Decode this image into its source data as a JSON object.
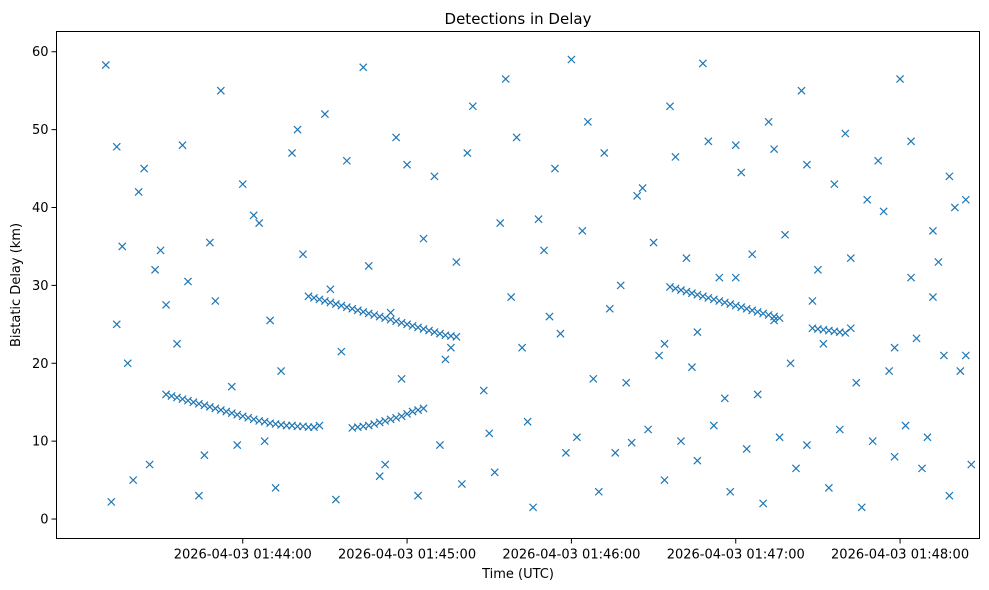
{
  "chart_data": {
    "type": "scatter",
    "title": "Detections in Delay",
    "xlabel": "Time (UTC)",
    "ylabel": "Bistatic Delay (km)",
    "x_ticks": [
      "2026-04-03 01:44:00",
      "2026-04-03 01:45:00",
      "2026-04-03 01:46:00",
      "2026-04-03 01:47:00",
      "2026-04-03 01:48:00"
    ],
    "xlim": [
      "2026-04-03 01:42:52",
      "2026-04-03 01:48:29"
    ],
    "y_ticks": [
      0,
      10,
      20,
      30,
      40,
      50,
      60
    ],
    "ylim": [
      -2.5,
      62.6
    ],
    "marker": "x",
    "marker_color": "#1f77b4",
    "grid": false,
    "note": "Cluttered scatter of several hundred detections; listed below are the clearly visible tracks (in order of time) plus a representative sample of scattered clutter points.",
    "series": [
      {
        "name": "",
        "x": [
          "2026-04-03 01:43:32",
          "2026-04-03 01:43:34",
          "2026-04-03 01:43:36",
          "2026-04-03 01:43:38",
          "2026-04-03 01:43:40",
          "2026-04-03 01:43:42",
          "2026-04-03 01:43:44",
          "2026-04-03 01:43:46",
          "2026-04-03 01:43:48",
          "2026-04-03 01:43:50",
          "2026-04-03 01:43:52",
          "2026-04-03 01:43:54",
          "2026-04-03 01:43:56",
          "2026-04-03 01:43:58",
          "2026-04-03 01:44:00",
          "2026-04-03 01:44:02",
          "2026-04-03 01:44:04",
          "2026-04-03 01:44:06",
          "2026-04-03 01:44:08",
          "2026-04-03 01:44:10",
          "2026-04-03 01:44:12",
          "2026-04-03 01:44:14",
          "2026-04-03 01:44:16",
          "2026-04-03 01:44:18",
          "2026-04-03 01:44:20",
          "2026-04-03 01:44:22",
          "2026-04-03 01:44:24",
          "2026-04-03 01:44:26",
          "2026-04-03 01:44:40",
          "2026-04-03 01:44:42",
          "2026-04-03 01:44:44",
          "2026-04-03 01:44:46",
          "2026-04-03 01:44:48",
          "2026-04-03 01:44:50",
          "2026-04-03 01:44:52",
          "2026-04-03 01:44:54",
          "2026-04-03 01:44:56",
          "2026-04-03 01:44:58",
          "2026-04-03 01:45:00",
          "2026-04-03 01:45:02",
          "2026-04-03 01:45:04",
          "2026-04-03 01:45:06",
          "2026-04-03 01:44:24",
          "2026-04-03 01:44:26",
          "2026-04-03 01:44:28",
          "2026-04-03 01:44:30",
          "2026-04-03 01:44:32",
          "2026-04-03 01:44:34",
          "2026-04-03 01:44:36",
          "2026-04-03 01:44:38",
          "2026-04-03 01:44:40",
          "2026-04-03 01:44:42",
          "2026-04-03 01:44:44",
          "2026-04-03 01:44:46",
          "2026-04-03 01:44:48",
          "2026-04-03 01:44:50",
          "2026-04-03 01:44:52",
          "2026-04-03 01:44:54",
          "2026-04-03 01:44:56",
          "2026-04-03 01:44:58",
          "2026-04-03 01:45:00",
          "2026-04-03 01:45:02",
          "2026-04-03 01:45:04",
          "2026-04-03 01:45:06",
          "2026-04-03 01:45:08",
          "2026-04-03 01:45:10",
          "2026-04-03 01:45:12",
          "2026-04-03 01:45:14",
          "2026-04-03 01:45:16",
          "2026-04-03 01:45:18",
          "2026-04-03 01:46:36",
          "2026-04-03 01:46:38",
          "2026-04-03 01:46:40",
          "2026-04-03 01:46:42",
          "2026-04-03 01:46:44",
          "2026-04-03 01:46:46",
          "2026-04-03 01:46:48",
          "2026-04-03 01:46:50",
          "2026-04-03 01:46:52",
          "2026-04-03 01:46:54",
          "2026-04-03 01:46:56",
          "2026-04-03 01:46:58",
          "2026-04-03 01:47:00",
          "2026-04-03 01:47:02",
          "2026-04-03 01:47:04",
          "2026-04-03 01:47:06",
          "2026-04-03 01:47:08",
          "2026-04-03 01:47:10",
          "2026-04-03 01:47:12",
          "2026-04-03 01:47:14",
          "2026-04-03 01:47:16",
          "2026-04-03 01:47:28",
          "2026-04-03 01:47:30",
          "2026-04-03 01:47:32",
          "2026-04-03 01:47:34",
          "2026-04-03 01:47:36",
          "2026-04-03 01:47:38",
          "2026-04-03 01:47:40",
          "2026-04-03 01:43:10",
          "2026-04-03 01:43:14",
          "2026-04-03 01:43:22",
          "2026-04-03 01:43:30",
          "2026-04-03 01:43:40",
          "2026-04-03 01:43:52",
          "2026-04-03 01:44:06",
          "2026-04-03 01:44:18",
          "2026-04-03 01:44:30",
          "2026-04-03 01:44:44",
          "2026-04-03 01:44:56",
          "2026-04-03 01:45:10",
          "2026-04-03 01:45:24",
          "2026-04-03 01:45:36",
          "2026-04-03 01:45:48",
          "2026-04-03 01:46:00",
          "2026-04-03 01:46:12",
          "2026-04-03 01:46:24",
          "2026-04-03 01:46:36",
          "2026-04-03 01:46:48",
          "2026-04-03 01:47:00",
          "2026-04-03 01:47:12",
          "2026-04-03 01:47:24",
          "2026-04-03 01:47:36",
          "2026-04-03 01:47:48",
          "2026-04-03 01:48:00",
          "2026-04-03 01:48:12",
          "2026-04-03 01:48:20",
          "2026-04-03 01:43:12",
          "2026-04-03 01:43:26",
          "2026-04-03 01:43:44",
          "2026-04-03 01:43:58",
          "2026-04-03 01:44:12",
          "2026-04-03 01:44:34",
          "2026-04-03 01:44:50",
          "2026-04-03 01:45:04",
          "2026-04-03 01:45:20",
          "2026-04-03 01:45:32",
          "2026-04-03 01:45:46",
          "2026-04-03 01:45:58",
          "2026-04-03 01:46:10",
          "2026-04-03 01:46:22",
          "2026-04-03 01:46:34",
          "2026-04-03 01:46:46",
          "2026-04-03 01:46:58",
          "2026-04-03 01:47:10",
          "2026-04-03 01:47:22",
          "2026-04-03 01:47:34",
          "2026-04-03 01:47:46",
          "2026-04-03 01:47:58",
          "2026-04-03 01:48:08",
          "2026-04-03 01:48:18",
          "2026-04-03 01:43:18",
          "2026-04-03 01:43:36",
          "2026-04-03 01:43:56",
          "2026-04-03 01:44:14",
          "2026-04-03 01:44:36",
          "2026-04-03 01:44:58",
          "2026-04-03 01:45:14",
          "2026-04-03 01:45:28",
          "2026-04-03 01:45:42",
          "2026-04-03 01:45:56",
          "2026-04-03 01:46:08",
          "2026-04-03 01:46:20",
          "2026-04-03 01:46:32",
          "2026-04-03 01:46:44",
          "2026-04-03 01:46:56",
          "2026-04-03 01:47:08",
          "2026-04-03 01:47:20",
          "2026-04-03 01:47:32",
          "2026-04-03 01:47:44",
          "2026-04-03 01:47:56",
          "2026-04-03 01:48:06",
          "2026-04-03 01:48:16",
          "2026-04-03 01:48:22",
          "2026-04-03 01:43:16",
          "2026-04-03 01:43:28",
          "2026-04-03 01:43:48",
          "2026-04-03 01:44:04",
          "2026-04-03 01:44:22",
          "2026-04-03 01:44:46",
          "2026-04-03 01:45:06",
          "2026-04-03 01:45:18",
          "2026-04-03 01:45:34",
          "2026-04-03 01:45:50",
          "2026-04-03 01:46:04",
          "2026-04-03 01:46:18",
          "2026-04-03 01:46:30",
          "2026-04-03 01:46:42",
          "2026-04-03 01:46:54",
          "2026-04-03 01:47:06",
          "2026-04-03 01:47:18",
          "2026-04-03 01:47:30",
          "2026-04-03 01:47:42",
          "2026-04-03 01:47:54",
          "2026-04-03 01:48:04",
          "2026-04-03 01:48:14",
          "2026-04-03 01:48:24",
          "2026-04-03 01:43:20",
          "2026-04-03 01:43:46",
          "2026-04-03 01:44:08",
          "2026-04-03 01:44:28",
          "2026-04-03 01:44:52",
          "2026-04-03 01:45:12",
          "2026-04-03 01:45:30",
          "2026-04-03 01:45:44",
          "2026-04-03 01:46:02",
          "2026-04-03 01:46:16",
          "2026-04-03 01:46:28",
          "2026-04-03 01:46:40",
          "2026-04-03 01:46:52",
          "2026-04-03 01:47:04",
          "2026-04-03 01:47:16",
          "2026-04-03 01:47:26",
          "2026-04-03 01:47:38",
          "2026-04-03 01:47:50",
          "2026-04-03 01:48:02",
          "2026-04-03 01:48:10",
          "2026-04-03 01:48:26",
          "2026-04-03 01:43:24",
          "2026-04-03 01:43:38",
          "2026-04-03 01:44:00",
          "2026-04-03 01:44:20",
          "2026-04-03 01:44:38",
          "2026-04-03 01:45:00",
          "2026-04-03 01:45:22",
          "2026-04-03 01:45:40",
          "2026-04-03 01:45:54",
          "2026-04-03 01:46:06",
          "2026-04-03 01:46:26",
          "2026-04-03 01:46:38",
          "2026-04-03 01:46:50",
          "2026-04-03 01:47:02",
          "2026-04-03 01:47:14",
          "2026-04-03 01:47:26",
          "2026-04-03 01:47:40",
          "2026-04-03 01:47:52",
          "2026-04-03 01:48:04",
          "2026-04-03 01:48:18",
          "2026-04-03 01:43:14",
          "2026-04-03 01:43:32",
          "2026-04-03 01:43:50",
          "2026-04-03 01:44:10",
          "2026-04-03 01:44:32",
          "2026-04-03 01:44:54",
          "2026-04-03 01:45:16",
          "2026-04-03 01:45:38",
          "2026-04-03 01:45:52",
          "2026-04-03 01:46:14",
          "2026-04-03 01:46:34",
          "2026-04-03 01:46:46",
          "2026-04-03 01:47:00",
          "2026-04-03 01:47:14",
          "2026-04-03 01:47:28",
          "2026-04-03 01:47:42",
          "2026-04-03 01:47:58",
          "2026-04-03 01:48:12",
          "2026-04-03 01:48:24"
        ],
        "y": [
          16.0,
          15.8,
          15.6,
          15.4,
          15.2,
          15.0,
          14.8,
          14.6,
          14.4,
          14.2,
          14.0,
          13.8,
          13.6,
          13.4,
          13.2,
          13.0,
          12.8,
          12.6,
          12.5,
          12.3,
          12.2,
          12.1,
          12.0,
          12.0,
          11.9,
          11.9,
          11.8,
          11.8,
          11.7,
          11.8,
          11.9,
          12.0,
          12.2,
          12.4,
          12.6,
          12.8,
          13.0,
          13.2,
          13.5,
          13.8,
          14.0,
          14.2,
          28.6,
          28.4,
          28.2,
          28.0,
          27.8,
          27.6,
          27.4,
          27.2,
          27.0,
          26.8,
          26.6,
          26.4,
          26.2,
          26.0,
          25.8,
          25.6,
          25.4,
          25.2,
          25.0,
          24.8,
          24.6,
          24.4,
          24.2,
          24.0,
          23.8,
          23.6,
          23.5,
          23.4,
          29.8,
          29.6,
          29.4,
          29.2,
          29.0,
          28.8,
          28.6,
          28.4,
          28.2,
          28.0,
          27.8,
          27.6,
          27.4,
          27.2,
          27.0,
          26.8,
          26.6,
          26.4,
          26.2,
          26.0,
          25.8,
          24.5,
          24.4,
          24.3,
          24.2,
          24.1,
          24.0,
          23.9,
          58.3,
          47.8,
          42.0,
          34.5,
          30.5,
          55.0,
          38.0,
          47.0,
          52.0,
          58.0,
          49.0,
          44.0,
          53.0,
          56.5,
          38.5,
          59.0,
          47.0,
          41.5,
          53.0,
          58.5,
          48.0,
          51.0,
          55.0,
          43.0,
          41.0,
          56.5,
          37.0,
          40.0,
          2.2,
          7.0,
          3.0,
          9.5,
          4.0,
          2.5,
          5.5,
          3.0,
          4.5,
          6.0,
          1.5,
          8.5,
          3.5,
          9.8,
          5.0,
          7.5,
          3.5,
          2.0,
          6.5,
          4.0,
          1.5,
          8.0,
          6.5,
          3.0,
          20.0,
          22.5,
          17.0,
          19.0,
          21.5,
          18.0,
          20.5,
          16.5,
          22.0,
          23.8,
          18.0,
          17.5,
          21.0,
          19.5,
          15.5,
          16.0,
          20.0,
          22.5,
          17.5,
          19.0,
          23.2,
          21.0,
          19.0,
          35.0,
          32.0,
          35.5,
          39.0,
          34.0,
          32.5,
          36.0,
          33.0,
          38.0,
          34.5,
          37.0,
          30.0,
          35.5,
          33.5,
          31.0,
          34.0,
          36.5,
          32.0,
          33.5,
          39.5,
          31.0,
          33.0,
          41.0,
          5.0,
          8.2,
          10.0,
          12.0,
          7.0,
          9.5,
          11.0,
          12.5,
          10.5,
          8.5,
          11.5,
          10.0,
          12.0,
          9.0,
          10.5,
          9.5,
          11.5,
          10.0,
          12.0,
          10.5,
          7.0,
          45.0,
          48.0,
          43.0,
          50.0,
          46.0,
          45.5,
          47.0,
          49.0,
          45.0,
          51.0,
          42.5,
          46.5,
          48.5,
          44.5,
          47.5,
          45.5,
          49.5,
          46.0,
          48.5,
          44.0,
          25.0,
          27.5,
          28.0,
          25.5,
          29.5,
          26.5,
          22.0,
          28.5,
          26.0,
          27.0,
          22.5,
          24.0,
          31.0,
          25.5,
          28.0,
          24.5,
          22.0,
          28.5,
          21.0
        ]
      }
    ]
  }
}
